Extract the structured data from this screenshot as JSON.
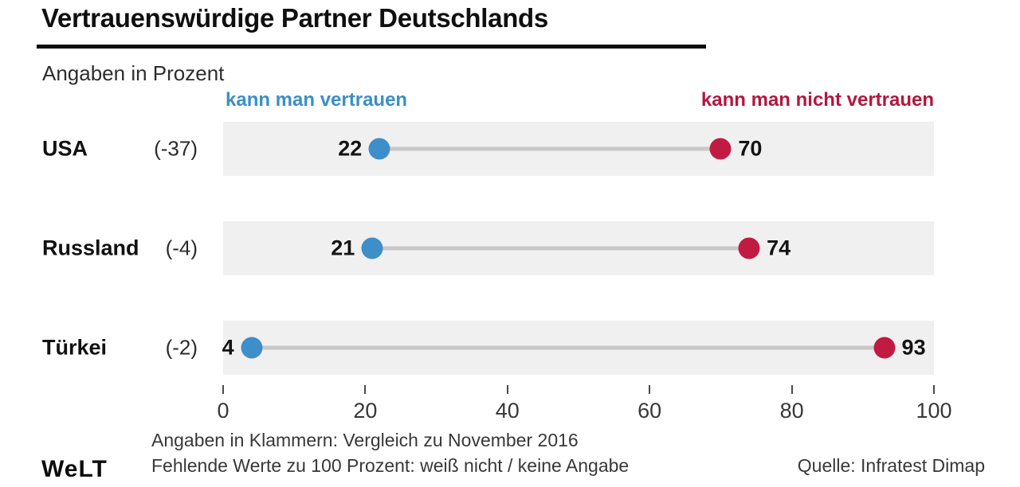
{
  "title": "Vertrauenswürdige Partner Deutschlands",
  "subtitle": "Angaben in Prozent",
  "legend": {
    "trust_label": "kann man vertrauen",
    "no_trust_label": "kann man nicht vertrauen"
  },
  "chart_data": {
    "type": "dumbbell",
    "title": "Vertrauenswürdige Partner Deutschlands",
    "subtitle": "Angaben in Prozent",
    "categories": [
      "USA",
      "Russland",
      "Türkei"
    ],
    "change_vs_nov_2016": [
      "(-37)",
      "(-4)",
      "(-2)"
    ],
    "series": [
      {
        "name": "kann man vertrauen",
        "color": "#3e8ec9",
        "values": [
          22,
          21,
          4
        ]
      },
      {
        "name": "kann man nicht vertrauen",
        "color": "#c11b44",
        "values": [
          70,
          74,
          93
        ]
      }
    ],
    "xlim": [
      0,
      100
    ],
    "x_ticks": [
      "0",
      "20",
      "40",
      "60",
      "80",
      "100"
    ],
    "legend_position": "top",
    "grid": false
  },
  "footnotes": {
    "line1": "Angaben in Klammern: Vergleich zu November 2016",
    "line2": "Fehlende Werte zu 100 Prozent: weiß nicht / keine Angabe",
    "source": "Quelle: Infratest Dimap"
  },
  "brand": "WeLT",
  "colors": {
    "trust": "#3e8ec9",
    "no_trust": "#c11b44",
    "trust_text": "#3a8fc7",
    "no_trust_text": "#b3173e",
    "row_band": "#f0f0f0",
    "connector": "#c8c8c8"
  }
}
